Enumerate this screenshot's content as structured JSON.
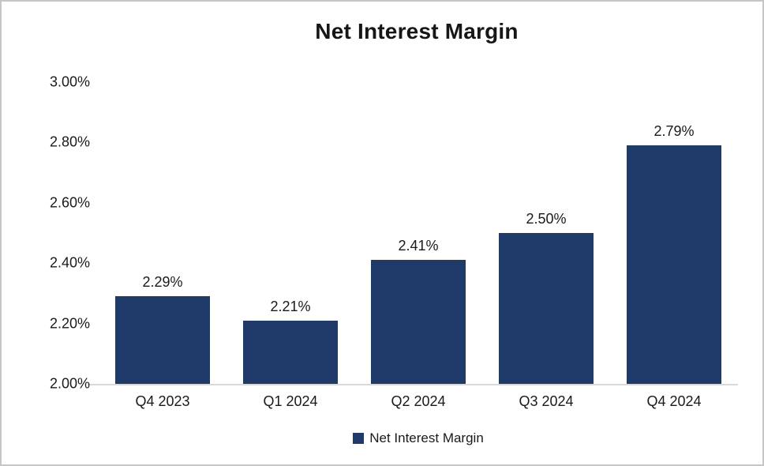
{
  "title": "Net Interest Margin",
  "legend": {
    "label": "Net Interest Margin"
  },
  "colors": {
    "bar": "#1f3a68",
    "axis_line": "#d9d9d9",
    "text": "#1a1a1a",
    "border": "#c6c6c6"
  },
  "chart_data": {
    "type": "bar",
    "title": "Net Interest Margin",
    "categories": [
      "Q4 2023",
      "Q1 2024",
      "Q2 2024",
      "Q3 2024",
      "Q4 2024"
    ],
    "values": [
      2.29,
      2.21,
      2.41,
      2.5,
      2.79
    ],
    "data_labels": [
      "2.29%",
      "2.21%",
      "2.41%",
      "2.50%",
      "2.79%"
    ],
    "xlabel": "",
    "ylabel": "",
    "ylim": [
      2.0,
      3.0
    ],
    "ytick_step": 0.2,
    "ytick_labels": [
      "2.00%",
      "2.20%",
      "2.40%",
      "2.60%",
      "2.80%",
      "3.00%"
    ],
    "grid": false,
    "legend_position": "bottom",
    "legend_entries": [
      "Net Interest Margin"
    ]
  }
}
